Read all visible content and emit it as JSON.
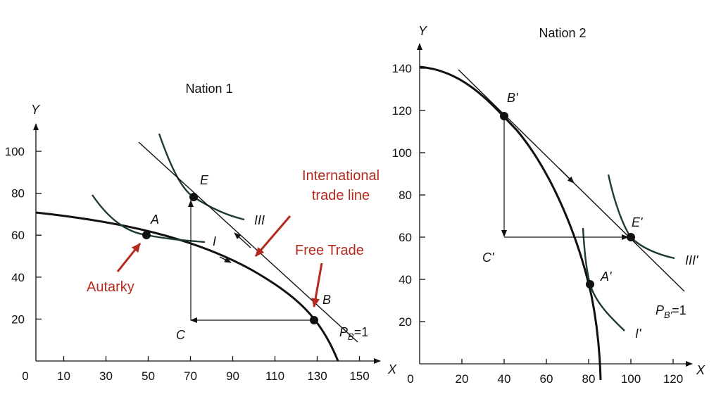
{
  "chart_data": [
    {
      "type": "line",
      "title": "Nation 1",
      "xlabel": "X",
      "ylabel": "Y",
      "xticks": [
        0,
        10,
        30,
        50,
        70,
        90,
        110,
        130,
        150
      ],
      "yticks": [
        20,
        40,
        60,
        80,
        100
      ],
      "points": [
        {
          "name": "A",
          "x": 50,
          "y": 59
        },
        {
          "name": "E",
          "x": 71,
          "y": 77
        },
        {
          "name": "B",
          "x": 130,
          "y": 18
        }
      ],
      "aux_labels": {
        "C": "C",
        "I": "I",
        "III": "III",
        "P_base": "P",
        "P_sub": "B",
        "P_eq": "=1"
      },
      "ppf": {
        "x": [
          0,
          20,
          40,
          50,
          60,
          80,
          100,
          115,
          130,
          140
        ],
        "y": [
          70,
          66,
          62,
          59,
          56,
          48,
          38,
          28,
          18,
          0
        ]
      },
      "indifference_curves": [
        {
          "name": "I",
          "x": [
            26,
            40,
            50,
            62,
            73
          ],
          "y": [
            78,
            64,
            59,
            57,
            56
          ]
        },
        {
          "name": "III",
          "x": [
            57,
            64,
            71,
            82,
            95
          ],
          "y": [
            108,
            88,
            77,
            70,
            67
          ]
        }
      ],
      "trade_line": {
        "x": [
          50,
          150
        ],
        "y": [
          103,
          10
        ]
      },
      "annotations": [
        "Autarky",
        "International trade line",
        "Free Trade"
      ]
    },
    {
      "type": "line",
      "title": "Nation 2",
      "xlabel": "X",
      "ylabel": "Y",
      "xticks": [
        0,
        20,
        40,
        60,
        80,
        100,
        120
      ],
      "yticks": [
        20,
        40,
        60,
        80,
        100,
        120,
        140
      ],
      "points": [
        {
          "name": "B'",
          "x": 40,
          "y": 117
        },
        {
          "name": "E'",
          "x": 100,
          "y": 60
        },
        {
          "name": "A'",
          "x": 82,
          "y": 37
        }
      ],
      "aux_labels": {
        "C'": "C'",
        "I'": "I'",
        "III'": "III'",
        "P_base": "P",
        "P_sub": "B'",
        "P_eq": "=1"
      },
      "ppf": {
        "x": [
          0,
          20,
          40,
          55,
          70,
          80,
          84,
          85
        ],
        "y": [
          140,
          134,
          117,
          98,
          70,
          40,
          15,
          -10
        ]
      },
      "indifference_curves": [
        {
          "name": "I'",
          "x": [
            77,
            79,
            82,
            88,
            100
          ],
          "y": [
            65,
            48,
            37,
            25,
            15
          ]
        },
        {
          "name": "III'",
          "x": [
            89,
            92,
            100,
            110,
            122
          ],
          "y": [
            90,
            74,
            60,
            53,
            50
          ]
        }
      ],
      "trade_line": {
        "x": [
          17,
          127
        ],
        "y": [
          140,
          35
        ]
      }
    }
  ]
}
